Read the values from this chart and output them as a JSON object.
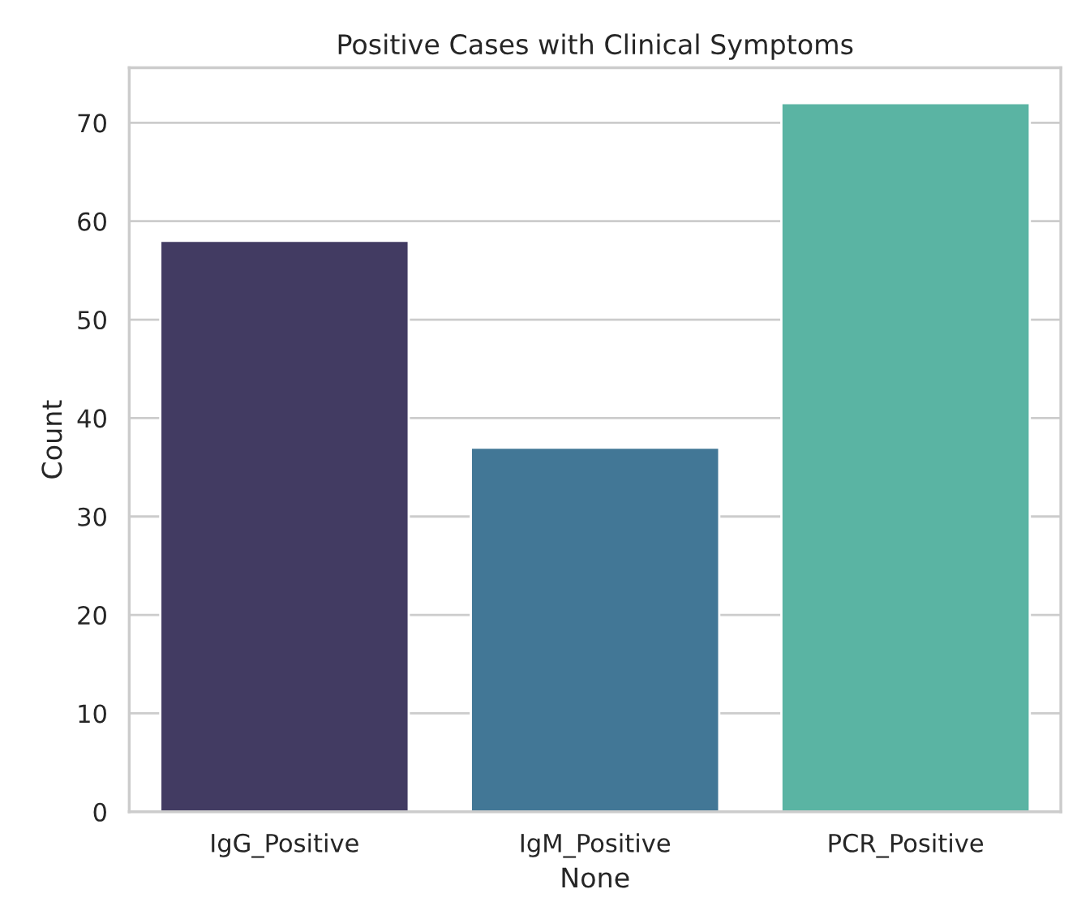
{
  "chart_data": {
    "type": "bar",
    "title": "Positive Cases with Clinical Symptoms",
    "xlabel": "None",
    "ylabel": "Count",
    "categories": [
      "IgG_Positive",
      "IgM_Positive",
      "PCR_Positive"
    ],
    "values": [
      58,
      37,
      72
    ],
    "colors": [
      "#423b62",
      "#427796",
      "#5ab4a3"
    ],
    "ylim": [
      0,
      75.6
    ],
    "yticks": [
      0,
      10,
      20,
      30,
      40,
      50,
      60,
      70
    ],
    "grid": "y"
  }
}
